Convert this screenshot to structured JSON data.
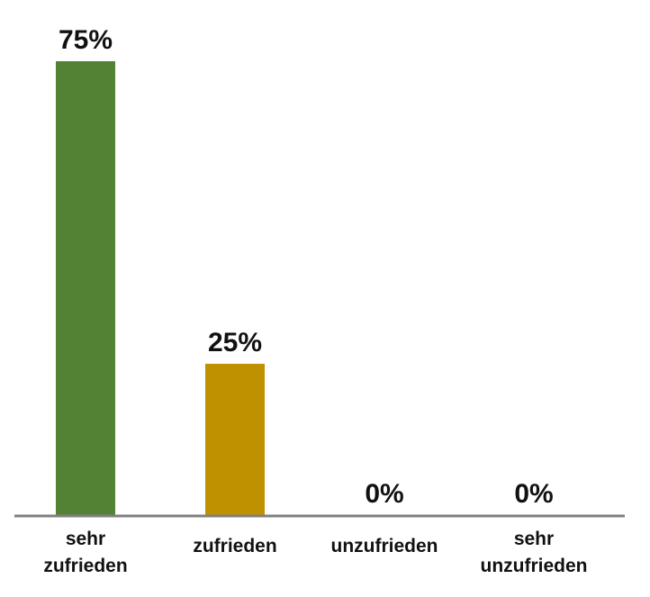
{
  "chart_data": {
    "type": "bar",
    "categories": [
      [
        "sehr",
        "zufrieden"
      ],
      [
        "zufrieden"
      ],
      [
        "unzufrieden"
      ],
      [
        "sehr",
        "unzufrieden"
      ]
    ],
    "values": [
      75,
      25,
      0,
      0
    ],
    "data_labels": [
      "75%",
      "25%",
      "0%",
      "0%"
    ],
    "ylim": [
      0,
      75
    ],
    "grid": false,
    "legend": "none",
    "colors": [
      "#548235",
      "#BF9000",
      "#548235",
      "#548235"
    ],
    "axis_color": "#7f7f7f"
  }
}
